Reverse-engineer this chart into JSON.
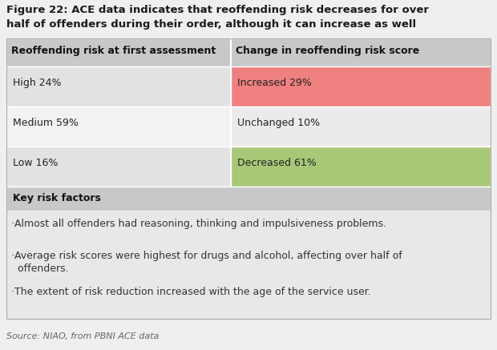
{
  "title_line1": "Figure 22: ACE data indicates that reoffending risk decreases for over",
  "title_line2": "half of offenders during their order, although it can increase as well",
  "title_fontsize": 9.5,
  "col1_header": "Reoffending risk at first assessment",
  "col2_header": "Change in reoffending risk score",
  "header_fontsize": 9,
  "rows": [
    {
      "col1": "High 24%",
      "col2": "Increased 29%",
      "col2_bg": "#f08080",
      "col1_bg": "#e2e2e2"
    },
    {
      "col1": "Medium 59%",
      "col2": "Unchanged 10%",
      "col2_bg": "#ebebeb",
      "col1_bg": "#f2f2f2"
    },
    {
      "col1": "Low 16%",
      "col2": "Decreased 61%",
      "col2_bg": "#a8c878",
      "col1_bg": "#e2e2e2"
    }
  ],
  "key_risk_header": "Key risk factors",
  "key_risk_bg": "#c8c8c8",
  "bullet1": "·Almost all offenders had reasoning, thinking and impulsiveness problems.",
  "bullet2a": "·Average risk scores were highest for drugs and alcohol, affecting over half of",
  "bullet2b": "  offenders.",
  "bullet3": "·The extent of risk reduction increased with the age of the service user.",
  "source_text": "Source: NIAO, from PBNI ACE data",
  "bg_color": "#efefef",
  "header_bg": "#c8c8c8",
  "col_split": 0.465,
  "row_fontsize": 9,
  "bullet_fontsize": 9,
  "source_fontsize": 8
}
